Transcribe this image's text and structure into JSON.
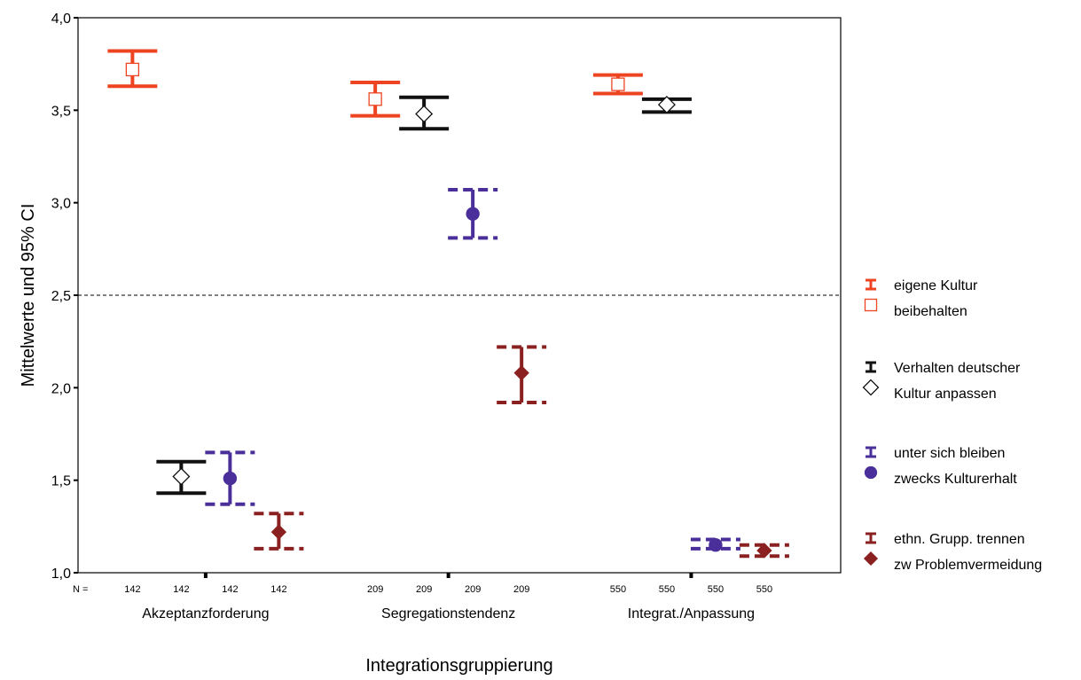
{
  "chart_data": {
    "type": "errorbar",
    "xlabel": "Integrationsgruppierung",
    "ylabel": "Mittelwerte und 95% CI",
    "ylim": [
      1.0,
      4.0
    ],
    "y_ticks": [
      "1,0",
      "1,5",
      "2,0",
      "2,5",
      "3,0",
      "3,5",
      "4,0"
    ],
    "y_tick_values": [
      1.0,
      1.5,
      2.0,
      2.5,
      3.0,
      3.5,
      4.0
    ],
    "reference_line": 2.5,
    "n_prefix": "N =",
    "categories": [
      "Akzeptanzforderung",
      "Segregationstendenz",
      "Integrat./Anpassung"
    ],
    "n_values": [
      [
        "142",
        "142",
        "142",
        "142"
      ],
      [
        "209",
        "209",
        "209",
        "209"
      ],
      [
        "550",
        "550",
        "550",
        "550"
      ]
    ],
    "series": [
      {
        "name_line1": "eigene Kultur",
        "name_line2": "beibehalten",
        "color": "#ee4422",
        "marker": "open-square",
        "dashed": false,
        "mean": [
          3.72,
          3.56,
          3.64
        ],
        "lower": [
          3.63,
          3.47,
          3.59
        ],
        "upper": [
          3.82,
          3.65,
          3.69
        ]
      },
      {
        "name_line1": "Verhalten deutscher",
        "name_line2": "Kultur anpassen",
        "color": "#111111",
        "marker": "open-diamond",
        "dashed": false,
        "mean": [
          1.52,
          3.48,
          3.53
        ],
        "lower": [
          1.43,
          3.4,
          3.49
        ],
        "upper": [
          1.6,
          3.57,
          3.56
        ]
      },
      {
        "name_line1": "unter sich bleiben",
        "name_line2": "zwecks Kulturerhalt",
        "color": "#4a2f9a",
        "marker": "filled-circle",
        "dashed": true,
        "mean": [
          1.51,
          2.94,
          1.15
        ],
        "lower": [
          1.37,
          2.81,
          1.13
        ],
        "upper": [
          1.65,
          3.07,
          1.18
        ]
      },
      {
        "name_line1": "ethn. Grupp. trennen",
        "name_line2": "zw Problemvermeidung",
        "color": "#8b2020",
        "marker": "filled-diamond",
        "dashed": true,
        "mean": [
          1.22,
          2.08,
          1.12
        ],
        "lower": [
          1.13,
          1.92,
          1.09
        ],
        "upper": [
          1.32,
          2.22,
          1.15
        ]
      }
    ],
    "legend_position": "right"
  }
}
